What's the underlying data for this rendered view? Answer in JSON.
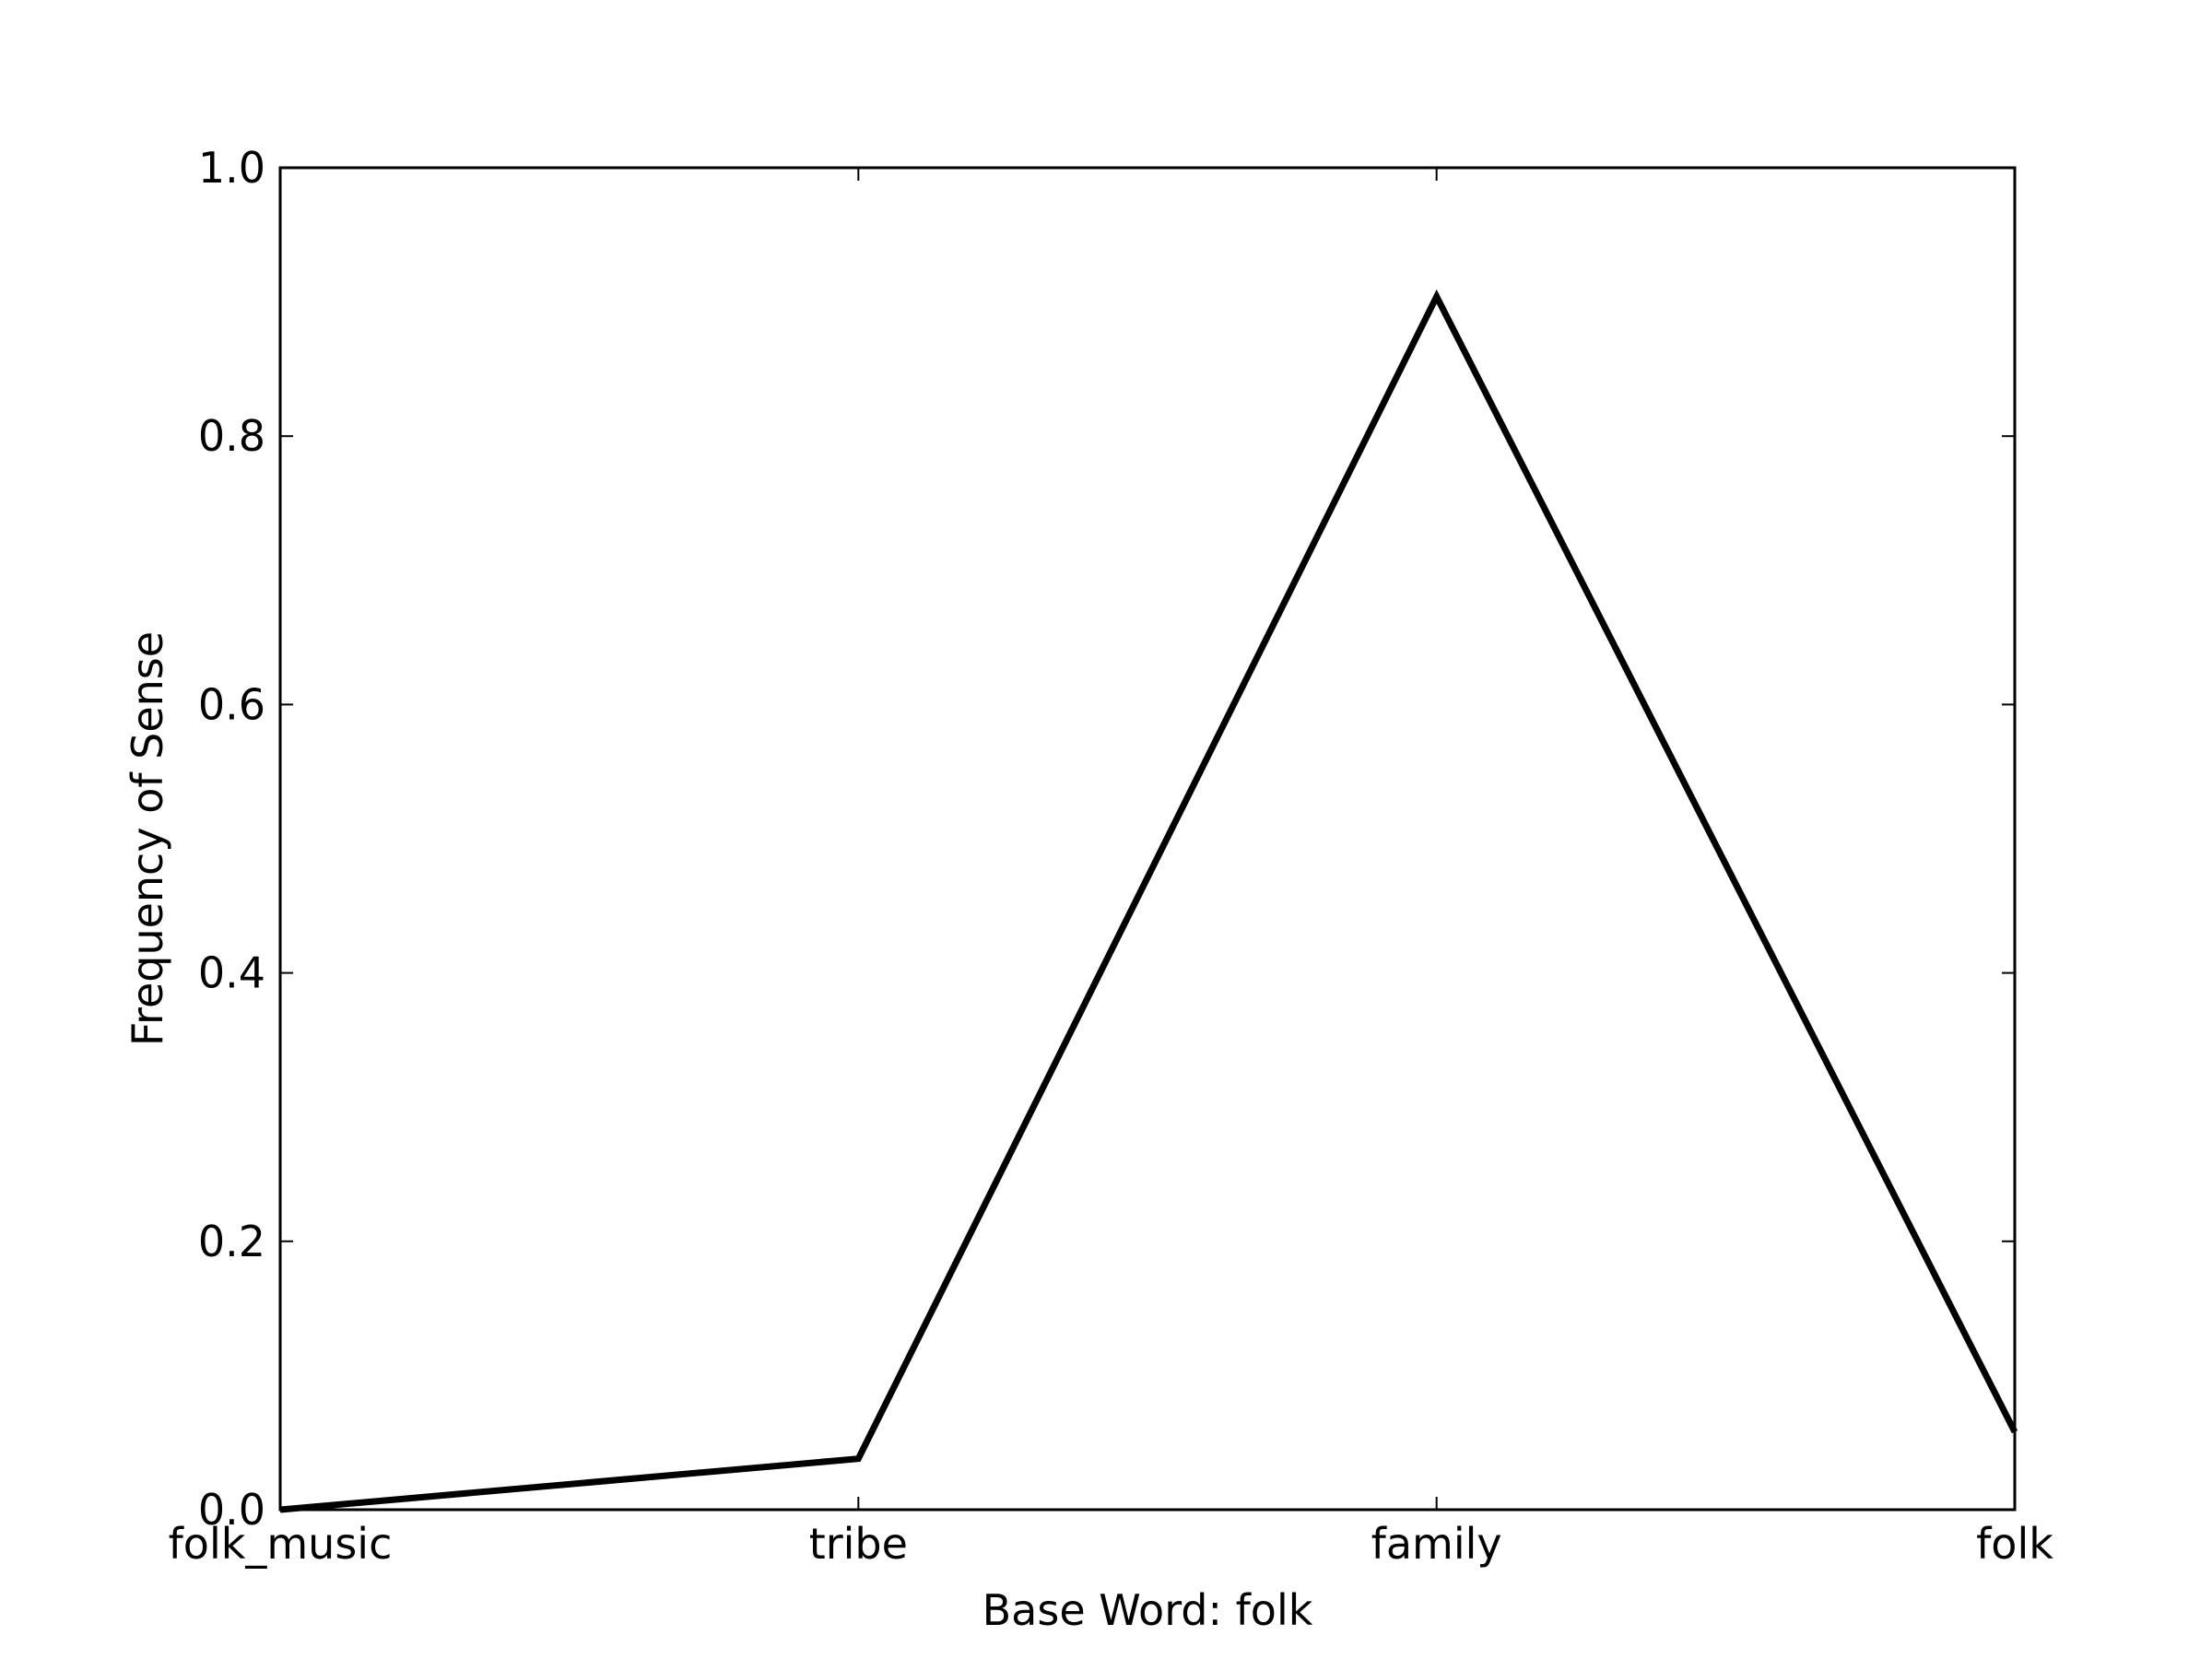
{
  "chart_data": {
    "type": "line",
    "categories": [
      "folk_music",
      "tribe",
      "family",
      "folk"
    ],
    "series": [
      {
        "values": [
          0.0,
          0.038,
          0.904,
          0.058
        ],
        "color": "#000000"
      }
    ],
    "title": "",
    "xlabel": "Base Word: folk",
    "ylabel": "Frequency of Sense",
    "ylim": [
      0.0,
      1.0
    ],
    "yticks": [
      0.0,
      0.2,
      0.4,
      0.6,
      0.8,
      1.0
    ],
    "ytick_labels": [
      "0.0",
      "0.2",
      "0.4",
      "0.6",
      "0.8",
      "1.0"
    ],
    "grid": false,
    "legend": "none"
  }
}
